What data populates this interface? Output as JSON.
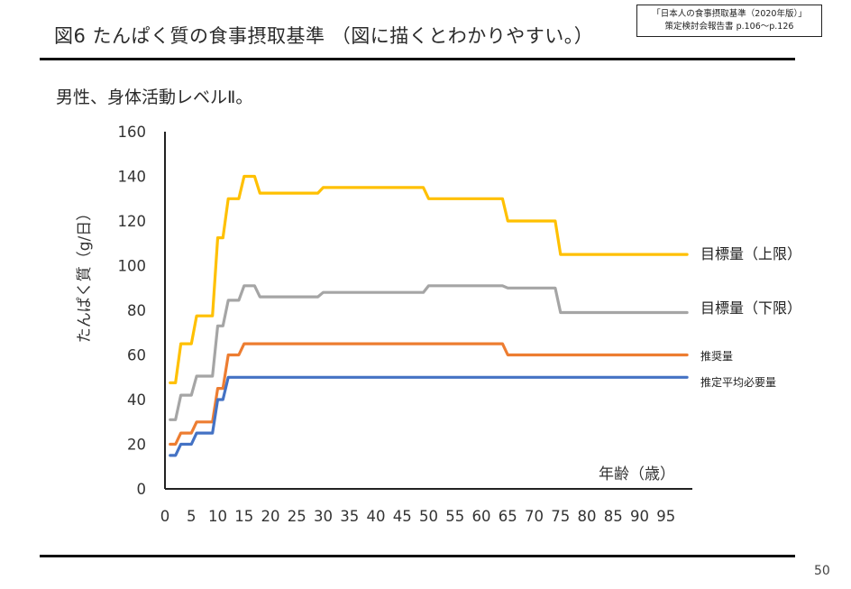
{
  "header": {
    "title": "図6 たんぱく質の食事摂取基準 （図に描くとわかりやすい。）",
    "source_line1": "「日本人の食事摂取基準（2020年版）」",
    "source_line2": "策定検討会報告書 p.106〜p.126"
  },
  "subtitle": "男性、身体活動レベルⅡ。",
  "page_number": "50",
  "chart_data": {
    "type": "line",
    "title": "",
    "xlabel": "年齢（歳）",
    "ylabel": "たんぱく質（g/日）",
    "xlim": [
      0,
      100
    ],
    "ylim": [
      0,
      160
    ],
    "x_ticks": [
      "0",
      "5",
      "10",
      "15",
      "20",
      "25",
      "30",
      "35",
      "40",
      "45",
      "50",
      "55",
      "60",
      "65",
      "70",
      "75",
      "80",
      "85",
      "90",
      "95"
    ],
    "y_ticks": [
      "0",
      "20",
      "40",
      "60",
      "80",
      "100",
      "120",
      "140",
      "160"
    ],
    "grid": false,
    "legend": "right end of lines",
    "series": [
      {
        "name": "目標量（上限）",
        "color": "#FFC000",
        "points": [
          [
            1,
            47.5
          ],
          [
            2,
            47.5
          ],
          [
            3,
            65
          ],
          [
            5,
            65
          ],
          [
            6,
            77.5
          ],
          [
            9,
            77.5
          ],
          [
            10,
            112.5
          ],
          [
            11,
            112.5
          ],
          [
            12,
            130
          ],
          [
            14,
            130
          ],
          [
            15,
            140
          ],
          [
            17,
            140
          ],
          [
            18,
            132.5
          ],
          [
            29,
            132.5
          ],
          [
            30,
            135
          ],
          [
            49,
            135
          ],
          [
            50,
            130
          ],
          [
            64,
            130
          ],
          [
            65,
            120
          ],
          [
            74,
            120
          ],
          [
            75,
            105
          ],
          [
            99,
            105
          ]
        ]
      },
      {
        "name": "目標量（下限）",
        "color": "#A5A5A5",
        "points": [
          [
            1,
            31
          ],
          [
            2,
            31
          ],
          [
            3,
            42
          ],
          [
            5,
            42
          ],
          [
            6,
            50.5
          ],
          [
            9,
            50.5
          ],
          [
            10,
            73
          ],
          [
            11,
            73
          ],
          [
            12,
            84.5
          ],
          [
            14,
            84.5
          ],
          [
            15,
            91
          ],
          [
            17,
            91
          ],
          [
            18,
            86
          ],
          [
            29,
            86
          ],
          [
            30,
            88
          ],
          [
            49,
            88
          ],
          [
            50,
            91
          ],
          [
            64,
            91
          ],
          [
            65,
            90
          ],
          [
            74,
            90
          ],
          [
            75,
            79
          ],
          [
            99,
            79
          ]
        ]
      },
      {
        "name": "推奨量",
        "color": "#ED7D31",
        "points": [
          [
            1,
            20
          ],
          [
            2,
            20
          ],
          [
            3,
            25
          ],
          [
            5,
            25
          ],
          [
            6,
            30
          ],
          [
            9,
            30
          ],
          [
            10,
            45
          ],
          [
            11,
            45
          ],
          [
            12,
            60
          ],
          [
            14,
            60
          ],
          [
            15,
            65
          ],
          [
            64,
            65
          ],
          [
            65,
            60
          ],
          [
            99,
            60
          ]
        ]
      },
      {
        "name": "推定平均必要量",
        "color": "#4472C4",
        "points": [
          [
            1,
            15
          ],
          [
            2,
            15
          ],
          [
            3,
            20
          ],
          [
            5,
            20
          ],
          [
            6,
            25
          ],
          [
            9,
            25
          ],
          [
            10,
            40
          ],
          [
            11,
            40
          ],
          [
            12,
            50
          ],
          [
            99,
            50
          ]
        ]
      }
    ]
  }
}
